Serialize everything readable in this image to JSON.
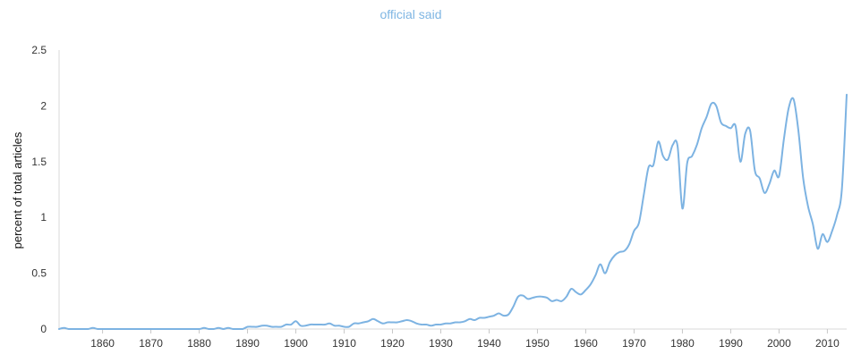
{
  "chart_data": {
    "type": "line",
    "title": "official said",
    "xlabel": "",
    "ylabel": "percent of total articles",
    "xlim": [
      1851,
      2014
    ],
    "ylim": [
      0,
      2.5
    ],
    "x_ticks": [
      "1860",
      "1870",
      "1880",
      "1890",
      "1900",
      "1910",
      "1920",
      "1930",
      "1940",
      "1950",
      "1960",
      "1970",
      "1980",
      "1990",
      "2000",
      "2010"
    ],
    "y_ticks": [
      "0",
      "0.5",
      "1",
      "1.5",
      "2",
      "2.5"
    ],
    "grid": false,
    "legend": "none",
    "line_color": "#7db3e2",
    "series": [
      {
        "x": [
          1851,
          1852,
          1853,
          1854,
          1855,
          1856,
          1857,
          1858,
          1859,
          1860,
          1862,
          1865,
          1868,
          1870,
          1875,
          1878,
          1880,
          1881,
          1882,
          1883,
          1884,
          1885,
          1886,
          1887,
          1888,
          1889,
          1890,
          1891,
          1892,
          1893,
          1894,
          1895,
          1896,
          1897,
          1898,
          1899,
          1900,
          1901,
          1902,
          1903,
          1904,
          1905,
          1906,
          1907,
          1908,
          1909,
          1910,
          1911,
          1912,
          1913,
          1914,
          1915,
          1916,
          1917,
          1918,
          1919,
          1920,
          1921,
          1922,
          1923,
          1924,
          1925,
          1926,
          1927,
          1928,
          1929,
          1930,
          1931,
          1932,
          1933,
          1934,
          1935,
          1936,
          1937,
          1938,
          1939,
          1940,
          1941,
          1942,
          1943,
          1944,
          1945,
          1946,
          1947,
          1948,
          1949,
          1950,
          1951,
          1952,
          1953,
          1954,
          1955,
          1956,
          1957,
          1958,
          1959,
          1960,
          1961,
          1962,
          1963,
          1964,
          1965,
          1966,
          1967,
          1968,
          1969,
          1970,
          1971,
          1972,
          1973,
          1974,
          1975,
          1976,
          1977,
          1978,
          1979,
          1980,
          1981,
          1982,
          1983,
          1984,
          1985,
          1986,
          1987,
          1988,
          1989,
          1990,
          1991,
          1992,
          1993,
          1994,
          1995,
          1996,
          1997,
          1998,
          1999,
          2000,
          2001,
          2002,
          2003,
          2004,
          2005,
          2006,
          2007,
          2008,
          2009,
          2010,
          2011,
          2012,
          2013,
          2014
        ],
        "values": [
          0,
          0.01,
          0,
          0,
          0,
          0,
          0,
          0.01,
          0,
          0,
          0,
          0,
          0,
          0,
          0,
          0,
          0,
          0.01,
          0,
          0,
          0.01,
          0,
          0.01,
          0,
          0,
          0,
          0.02,
          0.02,
          0.02,
          0.03,
          0.03,
          0.02,
          0.02,
          0.02,
          0.04,
          0.04,
          0.07,
          0.03,
          0.03,
          0.04,
          0.04,
          0.04,
          0.04,
          0.05,
          0.03,
          0.03,
          0.02,
          0.02,
          0.05,
          0.05,
          0.06,
          0.07,
          0.09,
          0.07,
          0.05,
          0.06,
          0.06,
          0.06,
          0.07,
          0.08,
          0.07,
          0.05,
          0.04,
          0.04,
          0.03,
          0.04,
          0.04,
          0.05,
          0.05,
          0.06,
          0.06,
          0.07,
          0.09,
          0.08,
          0.1,
          0.1,
          0.11,
          0.12,
          0.14,
          0.12,
          0.13,
          0.2,
          0.29,
          0.3,
          0.27,
          0.28,
          0.29,
          0.29,
          0.28,
          0.25,
          0.26,
          0.25,
          0.29,
          0.36,
          0.33,
          0.31,
          0.35,
          0.4,
          0.48,
          0.58,
          0.5,
          0.6,
          0.66,
          0.69,
          0.7,
          0.76,
          0.88,
          0.95,
          1.2,
          1.45,
          1.47,
          1.68,
          1.55,
          1.52,
          1.65,
          1.64,
          1.08,
          1.49,
          1.55,
          1.65,
          1.8,
          1.9,
          2.02,
          2.0,
          1.85,
          1.82,
          1.8,
          1.82,
          1.5,
          1.75,
          1.78,
          1.42,
          1.35,
          1.22,
          1.3,
          1.42,
          1.37,
          1.7,
          1.98,
          2.06,
          1.78,
          1.35,
          1.1,
          0.94,
          0.72,
          0.85,
          0.78,
          0.88,
          1.02,
          1.25,
          2.1
        ]
      }
    ]
  }
}
